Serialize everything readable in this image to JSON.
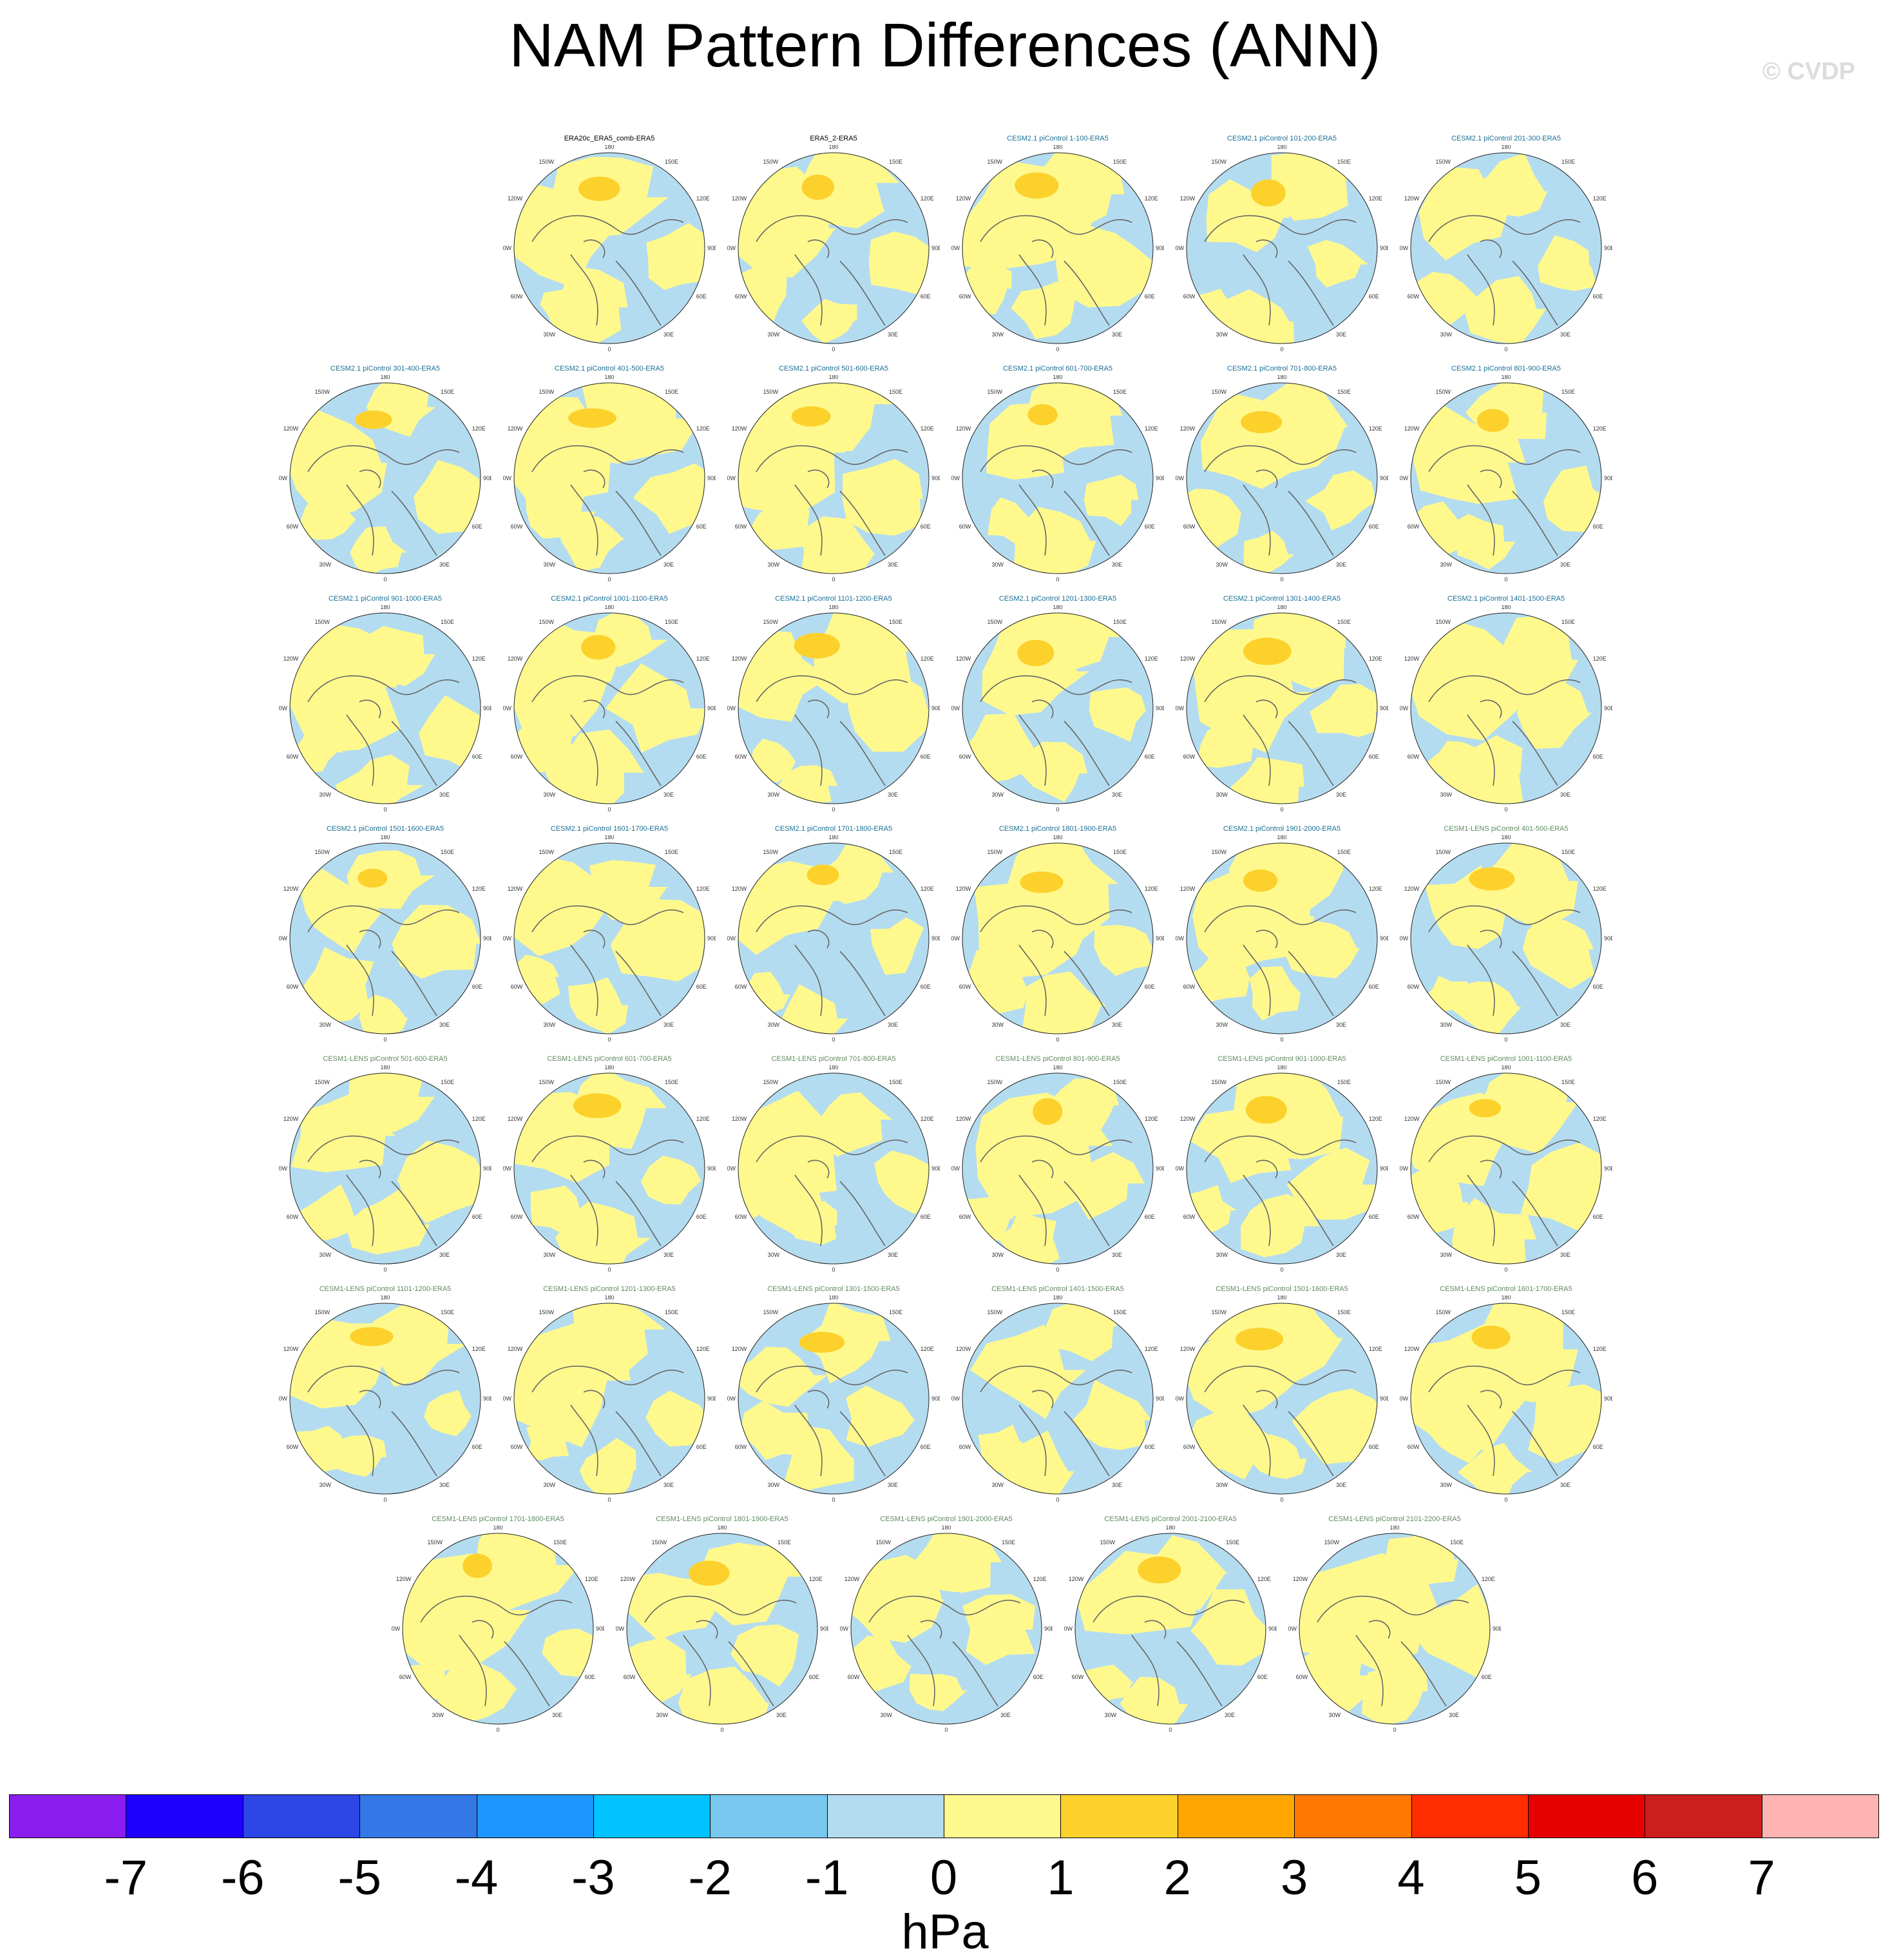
{
  "title": "NAM Pattern Differences (ANN)",
  "watermark": "© CVDP",
  "colors": {
    "title_obs": "#000000",
    "title_cesm2": "#1a6f96",
    "title_lens": "#5e8a5e",
    "ocean_base": "#b4dcf0",
    "land_fill": "#fff98d",
    "strong_pos": "#fcd12c",
    "coast": "#666666",
    "grid": "#aaaaaa"
  },
  "panels": [
    {
      "title": "ERA20c_ERA5_comb-ERA5",
      "group": "obs"
    },
    {
      "title": "ERA5_2-ERA5",
      "group": "obs"
    },
    {
      "title": "CESM2.1 piControl 1-100-ERA5",
      "group": "cesm2"
    },
    {
      "title": "CESM2.1 piControl 101-200-ERA5",
      "group": "cesm2"
    },
    {
      "title": "CESM2.1 piControl 201-300-ERA5",
      "group": "cesm2"
    },
    {
      "title": "CESM2.1 piControl 301-400-ERA5",
      "group": "cesm2"
    },
    {
      "title": "CESM2.1 piControl 401-500-ERA5",
      "group": "cesm2"
    },
    {
      "title": "CESM2.1 piControl 501-600-ERA5",
      "group": "cesm2"
    },
    {
      "title": "CESM2.1 piControl 601-700-ERA5",
      "group": "cesm2"
    },
    {
      "title": "CESM2.1 piControl 701-800-ERA5",
      "group": "cesm2"
    },
    {
      "title": "CESM2.1 piControl 801-900-ERA5",
      "group": "cesm2"
    },
    {
      "title": "CESM2.1 piControl 901-1000-ERA5",
      "group": "cesm2"
    },
    {
      "title": "CESM2.1 piControl 1001-1100-ERA5",
      "group": "cesm2"
    },
    {
      "title": "CESM2.1 piControl 1101-1200-ERA5",
      "group": "cesm2"
    },
    {
      "title": "CESM2.1 piControl 1201-1300-ERA5",
      "group": "cesm2"
    },
    {
      "title": "CESM2.1 piControl 1301-1400-ERA5",
      "group": "cesm2"
    },
    {
      "title": "CESM2.1 piControl 1401-1500-ERA5",
      "group": "cesm2"
    },
    {
      "title": "CESM2.1 piControl 1501-1600-ERA5",
      "group": "cesm2"
    },
    {
      "title": "CESM2.1 piControl 1601-1700-ERA5",
      "group": "cesm2"
    },
    {
      "title": "CESM2.1 piControl 1701-1800-ERA5",
      "group": "cesm2"
    },
    {
      "title": "CESM2.1 piControl 1801-1900-ERA5",
      "group": "cesm2"
    },
    {
      "title": "CESM2.1 piControl 1901-2000-ERA5",
      "group": "cesm2"
    },
    {
      "title": "CESM1-LENS piControl 401-500-ERA5",
      "group": "lens"
    },
    {
      "title": "CESM1-LENS piControl 501-600-ERA5",
      "group": "lens"
    },
    {
      "title": "CESM1-LENS piControl 601-700-ERA5",
      "group": "lens"
    },
    {
      "title": "CESM1-LENS piControl 701-800-ERA5",
      "group": "lens"
    },
    {
      "title": "CESM1-LENS piControl 801-900-ERA5",
      "group": "lens"
    },
    {
      "title": "CESM1-LENS piControl 901-1000-ERA5",
      "group": "lens"
    },
    {
      "title": "CESM1-LENS piControl 1001-1100-ERA5",
      "group": "lens"
    },
    {
      "title": "CESM1-LENS piControl 1101-1200-ERA5",
      "group": "lens"
    },
    {
      "title": "CESM1-LENS piControl 1201-1300-ERA5",
      "group": "lens"
    },
    {
      "title": "CESM1-LENS piControl 1301-1500-ERA5",
      "group": "lens"
    },
    {
      "title": "CESM1-LENS piControl 1401-1500-ERA5",
      "group": "lens"
    },
    {
      "title": "CESM1-LENS piControl 1501-1600-ERA5",
      "group": "lens"
    },
    {
      "title": "CESM1-LENS piControl 1601-1700-ERA5",
      "group": "lens"
    },
    {
      "title": "CESM1-LENS piControl 1701-1800-ERA5",
      "group": "lens"
    },
    {
      "title": "CESM1-LENS piControl 1801-1900-ERA5",
      "group": "lens"
    },
    {
      "title": "CESM1-LENS piControl 1901-2000-ERA5",
      "group": "lens"
    },
    {
      "title": "CESM1-LENS piControl 2001-2100-ERA5",
      "group": "lens"
    },
    {
      "title": "CESM1-LENS piControl 2101-2200-ERA5",
      "group": "lens"
    }
  ],
  "map_labels": {
    "top": "180",
    "top_left": "150W",
    "top_right": "150E",
    "upper_left": "120W",
    "upper_right": "120E",
    "left": "90W",
    "right": "90E",
    "lower_left": "60W",
    "lower_right": "60E",
    "bottom_left": "30W",
    "bottom_right": "30E",
    "bottom": "0"
  },
  "colorbar": {
    "units": "hPa",
    "ticks": [
      "-7",
      "-6",
      "-5",
      "-4",
      "-3",
      "-2",
      "-1",
      "0",
      "1",
      "2",
      "3",
      "4",
      "5",
      "6",
      "7"
    ],
    "colors": [
      "#8a1ef0",
      "#1e00ff",
      "#2d46e6",
      "#3278e6",
      "#1e96ff",
      "#00c3ff",
      "#78c8f0",
      "#b4dcf0",
      "#fff98d",
      "#fcd12c",
      "#ffa500",
      "#ff7800",
      "#ff2d00",
      "#e60000",
      "#cd1e1e",
      "#ffb4b4"
    ]
  }
}
